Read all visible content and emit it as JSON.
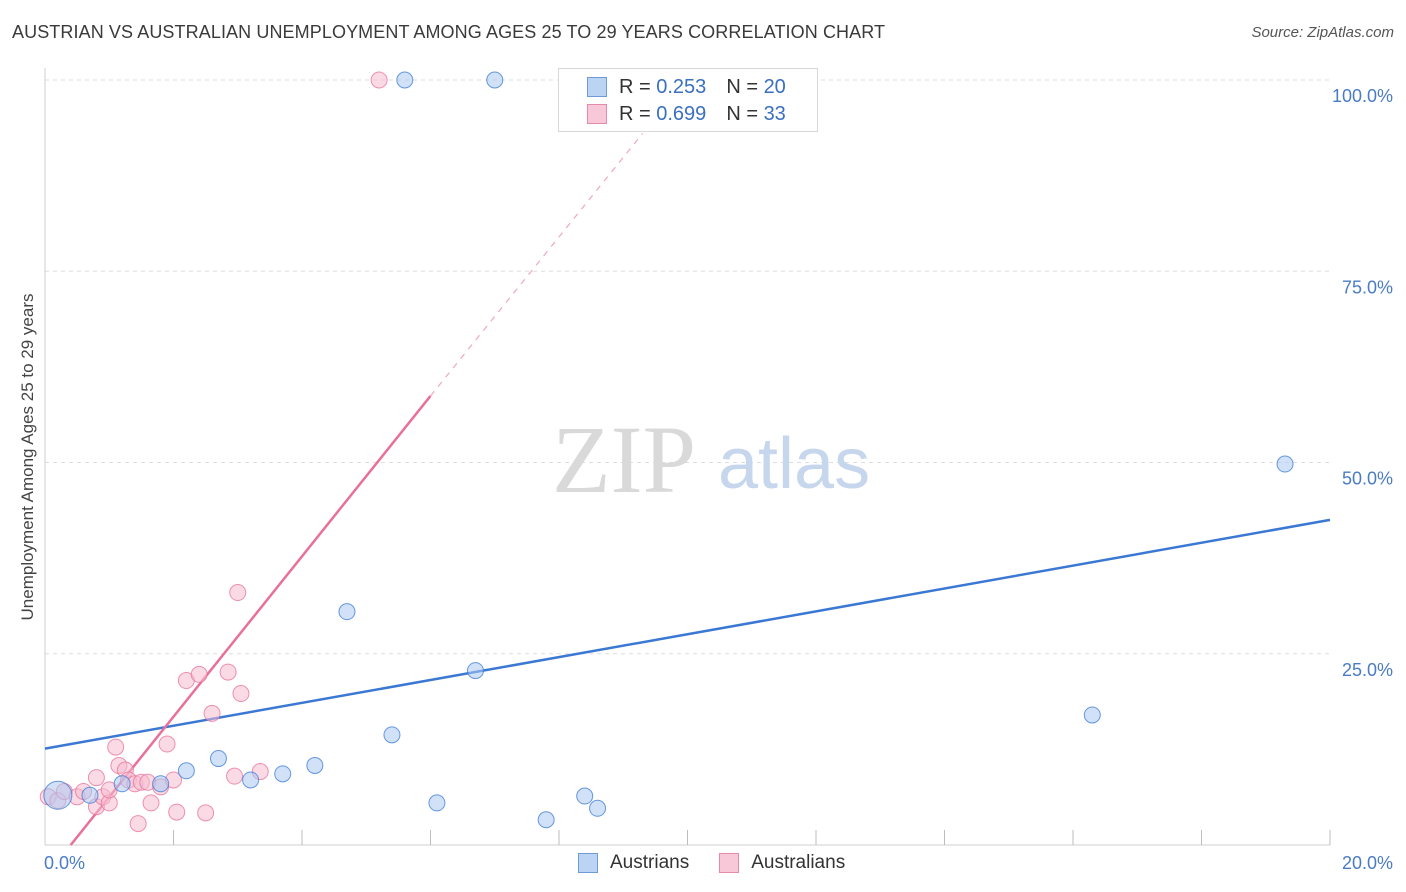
{
  "title": "AUSTRIAN VS AUSTRALIAN UNEMPLOYMENT AMONG AGES 25 TO 29 YEARS CORRELATION CHART",
  "source": "Source: ZipAtlas.com",
  "watermark": {
    "zip": "ZIP",
    "atlas": "atlas"
  },
  "legend": {
    "austrians": {
      "r_label": "R =",
      "r_value": "0.253",
      "n_label": "N =",
      "n_value": "20"
    },
    "australians": {
      "r_label": "R =",
      "r_value": "0.699",
      "n_label": "N =",
      "n_value": "33"
    }
  },
  "bottom_legend": {
    "austrians": "Austrians",
    "australians": "Australians"
  },
  "chart_data": {
    "type": "scatter",
    "title": "AUSTRIAN VS AUSTRALIAN UNEMPLOYMENT AMONG AGES 25 TO 29 YEARS CORRELATION CHART",
    "xlabel": "",
    "ylabel": "Unemployment Among Ages 25 to 29 years",
    "xlim": [
      0,
      20
    ],
    "ylim": [
      0,
      100
    ],
    "x_tick_labels": [
      "0.0%",
      "20.0%"
    ],
    "y_ticks": [
      25,
      50,
      75,
      100
    ],
    "y_tick_labels": [
      "25.0%",
      "50.0%",
      "75.0%",
      "100.0%"
    ],
    "colors": {
      "austrians": "#3a78d4",
      "australians": "#e8709a",
      "austrians_fill": "#aac8f2",
      "australians_fill": "#f6bcd0"
    },
    "series": [
      {
        "name": "Austrians",
        "points": [
          [
            0.2,
            6.5
          ],
          [
            0.7,
            6.5
          ],
          [
            1.2,
            8.0
          ],
          [
            1.8,
            8.0
          ],
          [
            2.2,
            9.7
          ],
          [
            2.7,
            11.3
          ],
          [
            3.2,
            8.5
          ],
          [
            3.7,
            9.3
          ],
          [
            4.2,
            10.4
          ],
          [
            4.7,
            30.5
          ],
          [
            5.4,
            14.4
          ],
          [
            5.6,
            100
          ],
          [
            6.1,
            5.5
          ],
          [
            6.7,
            22.8
          ],
          [
            7.0,
            100
          ],
          [
            7.8,
            3.3
          ],
          [
            8.4,
            6.4
          ],
          [
            8.6,
            4.8
          ],
          [
            16.3,
            17.0
          ],
          [
            19.3,
            49.8
          ]
        ],
        "trend": {
          "x": [
            0.0,
            20.0
          ],
          "y": [
            12.6,
            42.5
          ]
        }
      },
      {
        "name": "Australians",
        "points": [
          [
            0.05,
            6.3
          ],
          [
            0.2,
            5.8
          ],
          [
            0.3,
            7.0
          ],
          [
            0.5,
            6.3
          ],
          [
            0.6,
            7.0
          ],
          [
            0.8,
            5.0
          ],
          [
            0.8,
            8.8
          ],
          [
            0.9,
            6.3
          ],
          [
            1.0,
            5.5
          ],
          [
            1.0,
            7.2
          ],
          [
            1.1,
            12.8
          ],
          [
            1.15,
            10.4
          ],
          [
            1.25,
            9.8
          ],
          [
            1.3,
            8.5
          ],
          [
            1.4,
            8.0
          ],
          [
            1.5,
            8.2
          ],
          [
            1.45,
            2.8
          ],
          [
            1.6,
            8.2
          ],
          [
            1.65,
            5.5
          ],
          [
            1.8,
            7.6
          ],
          [
            1.9,
            13.2
          ],
          [
            2.0,
            8.5
          ],
          [
            2.05,
            4.3
          ],
          [
            2.2,
            21.5
          ],
          [
            2.4,
            22.3
          ],
          [
            2.5,
            4.2
          ],
          [
            2.6,
            17.2
          ],
          [
            2.85,
            22.6
          ],
          [
            2.95,
            9.0
          ],
          [
            3.0,
            33.0
          ],
          [
            3.05,
            19.8
          ],
          [
            3.35,
            9.6
          ],
          [
            5.2,
            100
          ]
        ],
        "trend": {
          "x": [
            0.4,
            6.0
          ],
          "y": [
            0.0,
            58.7
          ]
        },
        "trend_extension": {
          "x": [
            6.0,
            9.3
          ],
          "y": [
            58.7,
            93.0
          ]
        }
      }
    ]
  }
}
